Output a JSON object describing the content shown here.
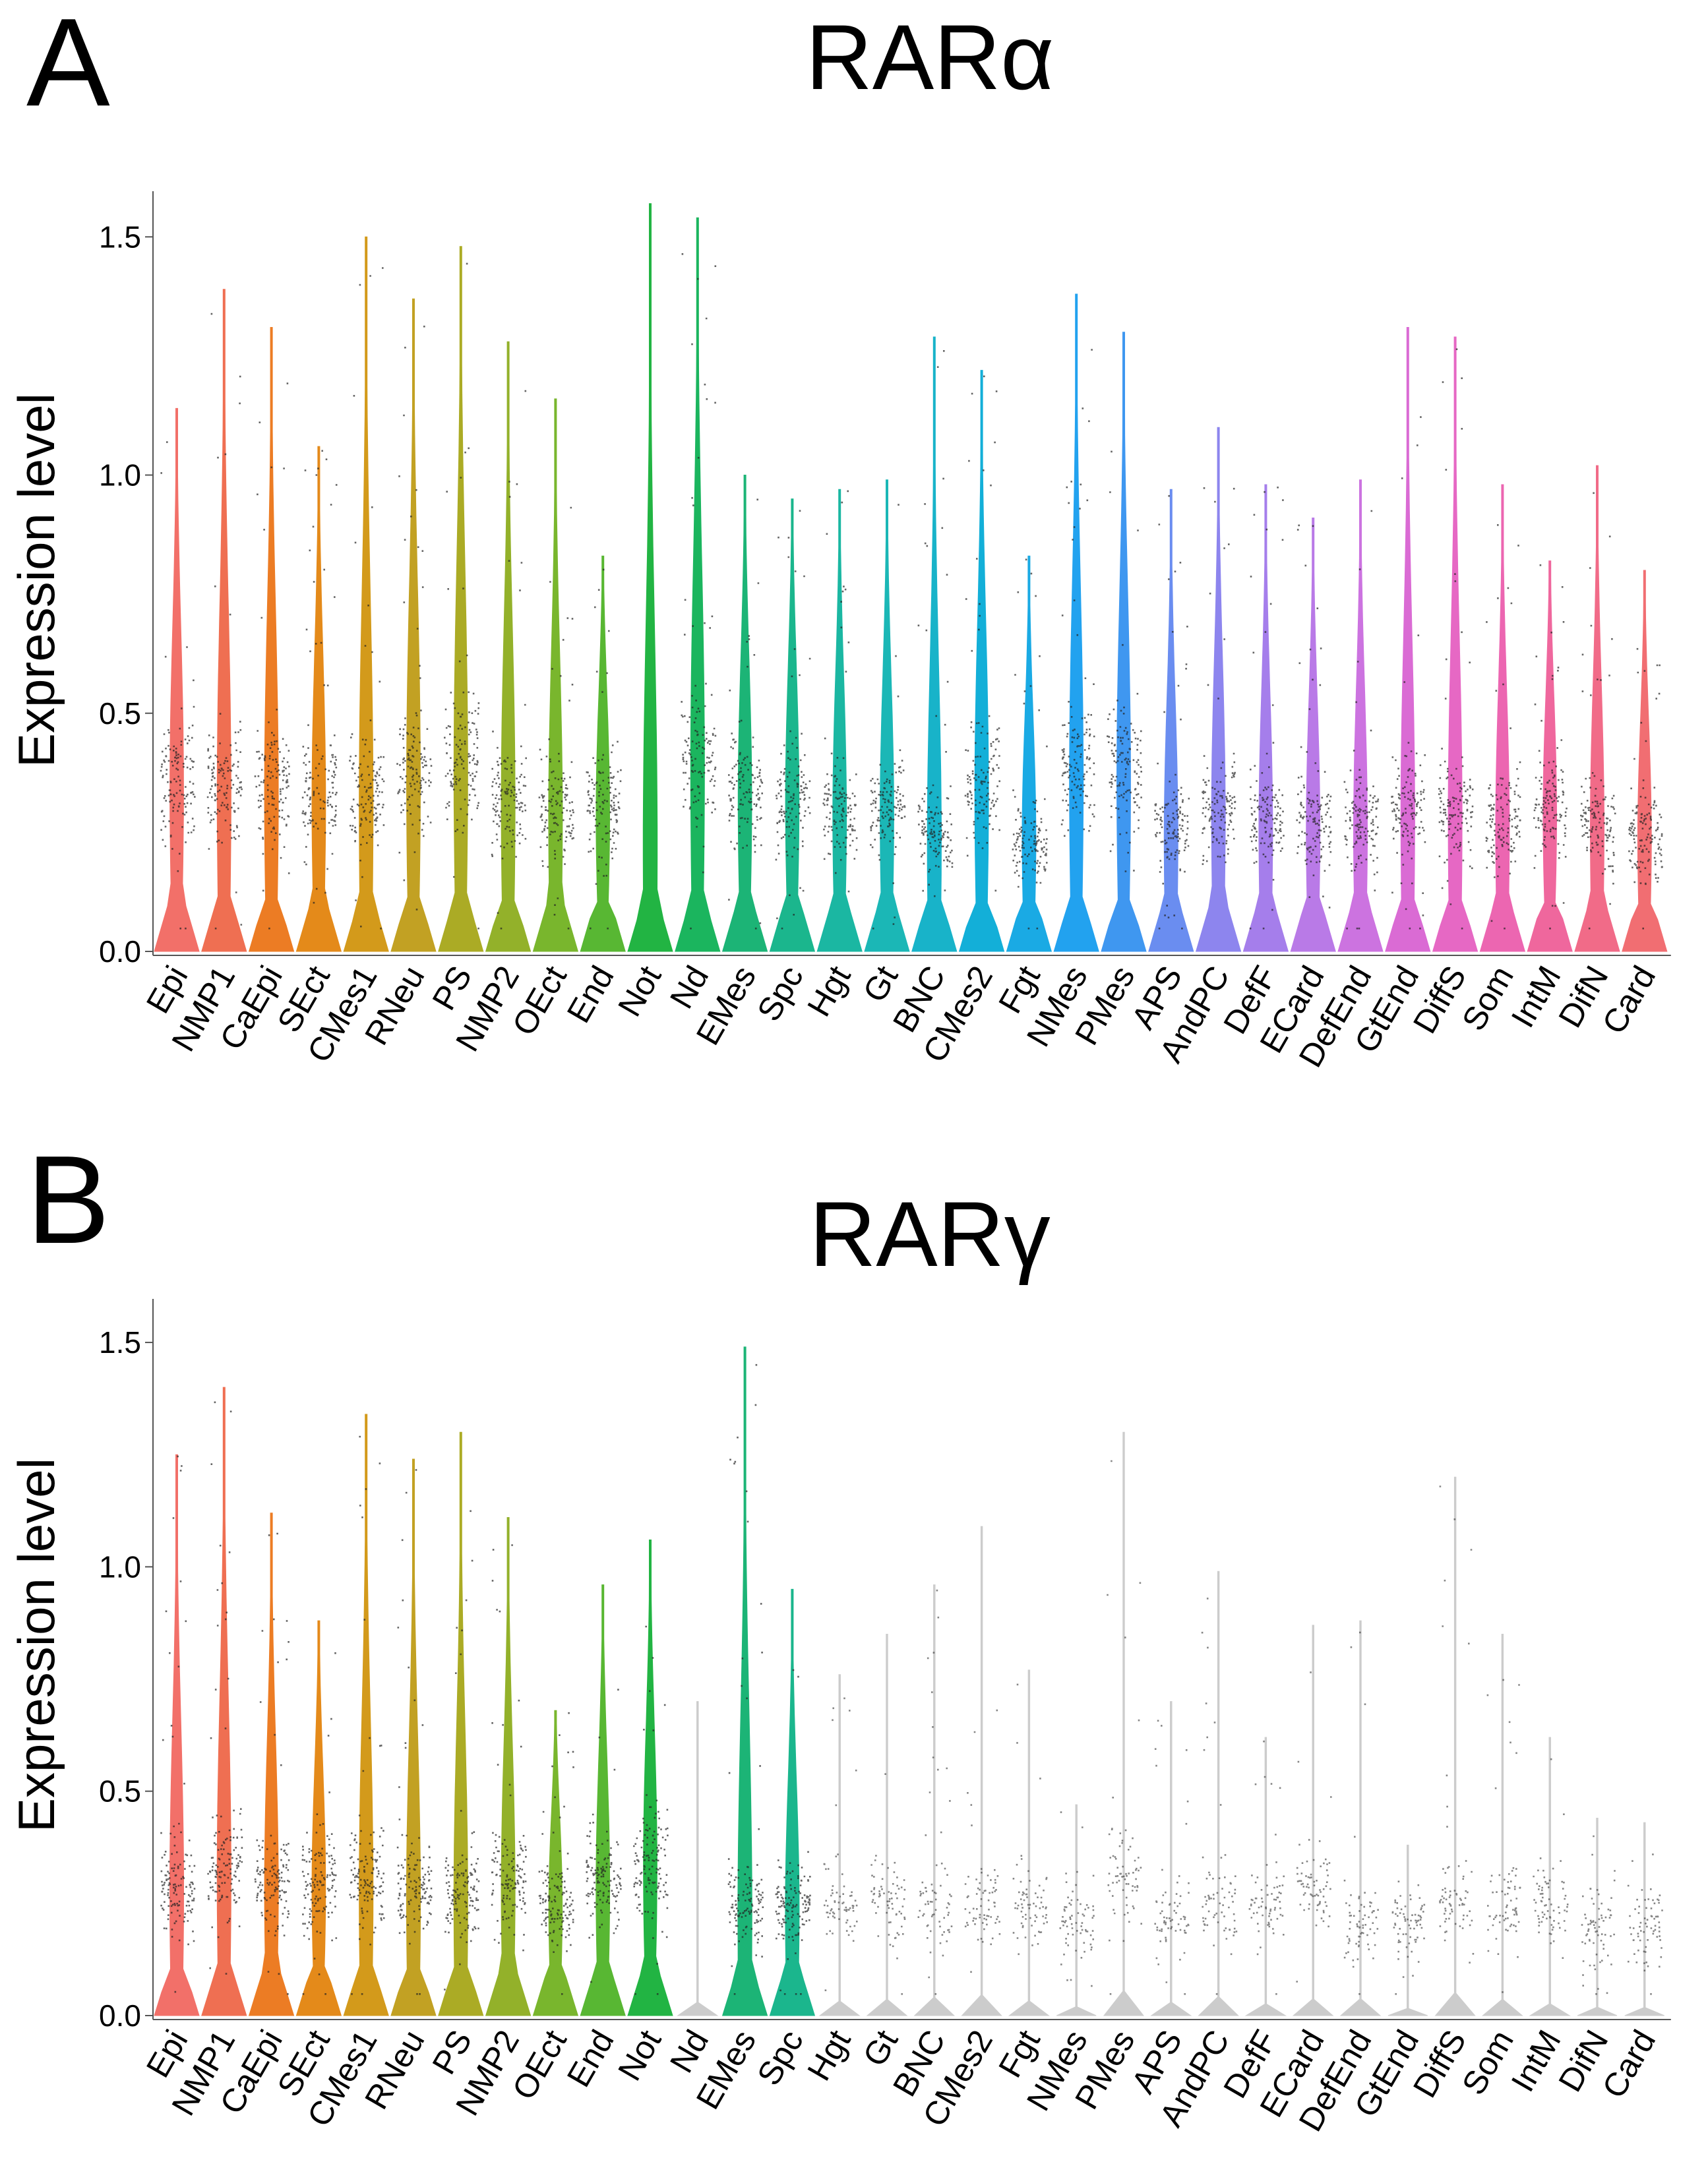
{
  "chart_data": [
    {
      "panel": "A",
      "type": "violin",
      "title": "RARα",
      "xlabel": "",
      "ylabel": "Expression level",
      "ylim": [
        0,
        1.6
      ],
      "yticks": [
        "0.0",
        "0.5",
        "1.0",
        "1.5"
      ],
      "categories": [
        "Epi",
        "NMP1",
        "CaEpi",
        "SEct",
        "CMes1",
        "RNeu",
        "PS",
        "NMP2",
        "OEct",
        "End",
        "Not",
        "Nd",
        "EMes",
        "Spc",
        "Hgt",
        "Gt",
        "BNC",
        "CMes2",
        "Fgt",
        "NMes",
        "PMes",
        "APS",
        "AndPC",
        "DefF",
        "ECard",
        "DefEnd",
        "GtEnd",
        "DiffS",
        "Som",
        "IntM",
        "DifN",
        "Card"
      ],
      "max_values": [
        1.14,
        1.39,
        1.31,
        1.06,
        1.5,
        1.37,
        1.48,
        1.28,
        1.16,
        0.83,
        1.57,
        1.54,
        1.0,
        0.95,
        0.97,
        0.99,
        1.29,
        1.22,
        0.83,
        1.38,
        1.3,
        0.97,
        1.1,
        0.98,
        0.91,
        0.99,
        1.31,
        1.29,
        0.98,
        0.82,
        1.02,
        0.8
      ],
      "points_median": [
        0.36,
        0.35,
        0.35,
        0.33,
        0.33,
        0.38,
        0.4,
        0.33,
        0.3,
        0.3,
        0.0,
        0.4,
        0.33,
        0.33,
        0.3,
        0.3,
        0.25,
        0.35,
        0.24,
        0.38,
        0.38,
        0.25,
        0.3,
        0.27,
        0.27,
        0.27,
        0.3,
        0.3,
        0.27,
        0.3,
        0.27,
        0.25
      ],
      "colors": [
        "#f27069",
        "#ef6f52",
        "#ec7c24",
        "#e48a1a",
        "#d39a1b",
        "#c2a123",
        "#abab25",
        "#93b12a",
        "#79b62d",
        "#58b733",
        "#22b443",
        "#1bb55e",
        "#1cb476",
        "#1bb68d",
        "#1bb7a2",
        "#1bb7b6",
        "#18b3c9",
        "#13afd8",
        "#1aaae4",
        "#22a2ef",
        "#3f97f0",
        "#6a8df0",
        "#8d85ee",
        "#a57eeb",
        "#b97ae7",
        "#cc73e0",
        "#da6bd4",
        "#e668c4",
        "#ec66b1",
        "#ef679d",
        "#f16b88",
        "#f16e72"
      ]
    },
    {
      "panel": "B",
      "type": "violin",
      "title": "RARγ",
      "xlabel": "",
      "ylabel": "Expression level",
      "ylim": [
        0,
        1.6
      ],
      "yticks": [
        "0.0",
        "0.5",
        "1.0",
        "1.5"
      ],
      "categories": [
        "Epi",
        "NMP1",
        "CaEpi",
        "SEct",
        "CMes1",
        "RNeu",
        "PS",
        "NMP2",
        "OEct",
        "End",
        "Not",
        "Nd",
        "EMes",
        "Spc",
        "Hgt",
        "Gt",
        "BNC",
        "CMes2",
        "Fgt",
        "NMes",
        "PMes",
        "APS",
        "AndPC",
        "DefF",
        "ECard",
        "DefEnd",
        "GtEnd",
        "DiffS",
        "Som",
        "IntM",
        "DifN",
        "Card"
      ],
      "max_values": [
        1.25,
        1.4,
        1.12,
        0.88,
        1.34,
        1.24,
        1.3,
        1.11,
        0.68,
        0.96,
        1.06,
        0.7,
        1.49,
        0.95,
        0.76,
        0.85,
        0.96,
        1.09,
        0.77,
        0.47,
        1.3,
        0.7,
        0.99,
        0.62,
        0.87,
        0.88,
        0.38,
        1.2,
        0.85,
        0.62,
        0.44,
        0.43
      ],
      "points_median": [
        0.3,
        0.33,
        0.3,
        0.3,
        0.3,
        0.28,
        0.28,
        0.3,
        0.25,
        0.3,
        0.35,
        0.0,
        0.25,
        0.25,
        0.25,
        0.25,
        0.25,
        0.25,
        0.25,
        0.22,
        0.3,
        0.22,
        0.25,
        0.25,
        0.28,
        0.2,
        0.2,
        0.25,
        0.25,
        0.25,
        0.2,
        0.2
      ],
      "colors": [
        "#f27069",
        "#ef6f52",
        "#ec7c24",
        "#e48a1a",
        "#d39a1b",
        "#c2a123",
        "#abab25",
        "#93b12a",
        "#79b62d",
        "#58b733",
        "#22b443",
        "#cccccc",
        "#1cb476",
        "#1bb68d",
        "#cccccc",
        "#cccccc",
        "#cccccc",
        "#cccccc",
        "#cccccc",
        "#cccccc",
        "#cccccc",
        "#cccccc",
        "#cccccc",
        "#cccccc",
        "#cccccc",
        "#cccccc",
        "#cccccc",
        "#cccccc",
        "#cccccc",
        "#cccccc",
        "#cccccc",
        "#cccccc"
      ]
    }
  ]
}
